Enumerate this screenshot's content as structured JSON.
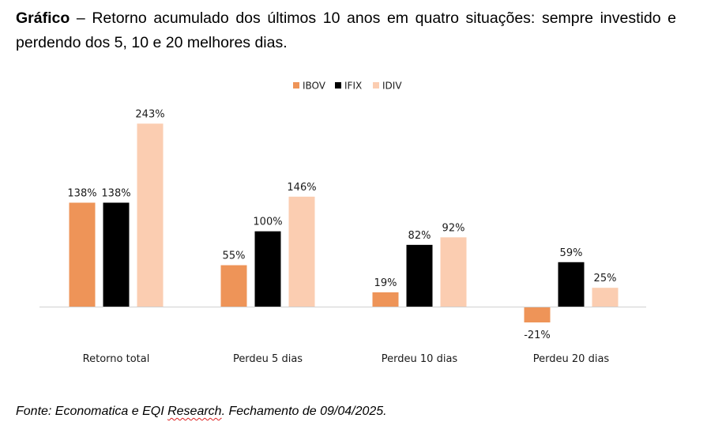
{
  "caption": {
    "bold": "Gráfico",
    "text": " – Retorno acumulado dos últimos 10 anos em quatro situações: sempre investido e perdendo dos 5, 10 e 20 melhores dias."
  },
  "source": {
    "part1": "Fonte: Economatica e EQI ",
    "part2": "Research",
    "part3": ". Fechamento de 09/04/2025."
  },
  "colors": {
    "IBOV": "#ee9458",
    "IFIX": "#000000",
    "IDIV": "#fbcdb1",
    "axis": "#d0d0d0",
    "label": "#1a1a1a"
  },
  "chart_data": {
    "type": "bar",
    "title": "",
    "xlabel": "",
    "ylabel": "",
    "ylim": [
      -21,
      243
    ],
    "grid": false,
    "legend_position": "top-center",
    "categories": [
      "Retorno total",
      "Perdeu 5 dias",
      "Perdeu 10 dias",
      "Perdeu 20 dias"
    ],
    "series": [
      {
        "name": "IBOV",
        "values": [
          138,
          55,
          19,
          -21
        ],
        "labels": [
          "138%",
          "55%",
          "19%",
          "-21%"
        ]
      },
      {
        "name": "IFIX",
        "values": [
          138,
          100,
          82,
          59
        ],
        "labels": [
          "138%",
          "100%",
          "82%",
          "59%"
        ]
      },
      {
        "name": "IDIV",
        "values": [
          243,
          146,
          92,
          25
        ],
        "labels": [
          "243%",
          "146%",
          "92%",
          "25%"
        ]
      }
    ]
  }
}
